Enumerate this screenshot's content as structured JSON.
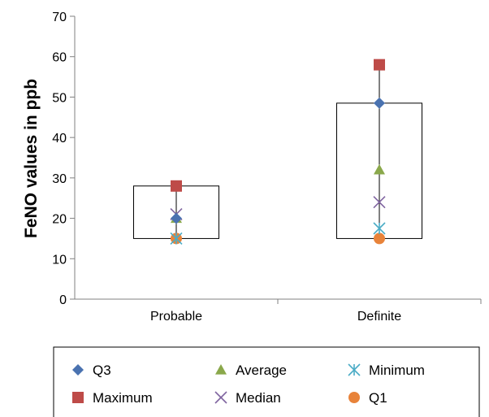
{
  "chart_data": {
    "type": "box-marker",
    "ylabel": "FeNO values in ppb",
    "xlabel": "",
    "ylim": [
      0,
      70
    ],
    "yticks": [
      0,
      10,
      20,
      30,
      40,
      50,
      60,
      70
    ],
    "categories": [
      "Probable",
      "Definite"
    ],
    "series": [
      {
        "name": "Q3",
        "values": [
          20,
          48.5
        ],
        "marker": "diamond",
        "color": "#4a72b0"
      },
      {
        "name": "Maximum",
        "values": [
          28,
          58
        ],
        "marker": "square",
        "color": "#be4b48"
      },
      {
        "name": "Average",
        "values": [
          20,
          32
        ],
        "marker": "triangle",
        "color": "#8aa84b"
      },
      {
        "name": "Median",
        "values": [
          21,
          24
        ],
        "marker": "x",
        "color": "#7f64a0"
      },
      {
        "name": "Minimum",
        "values": [
          15,
          17.5
        ],
        "marker": "asterisk",
        "color": "#4bacc6"
      },
      {
        "name": "Q1",
        "values": [
          15,
          15
        ],
        "marker": "circle",
        "color": "#e8833a"
      }
    ],
    "legend": {
      "position": "bottom",
      "order": [
        "Q3",
        "Average",
        "Minimum",
        "Maximum",
        "Median",
        "Q1"
      ]
    },
    "grid": false
  }
}
